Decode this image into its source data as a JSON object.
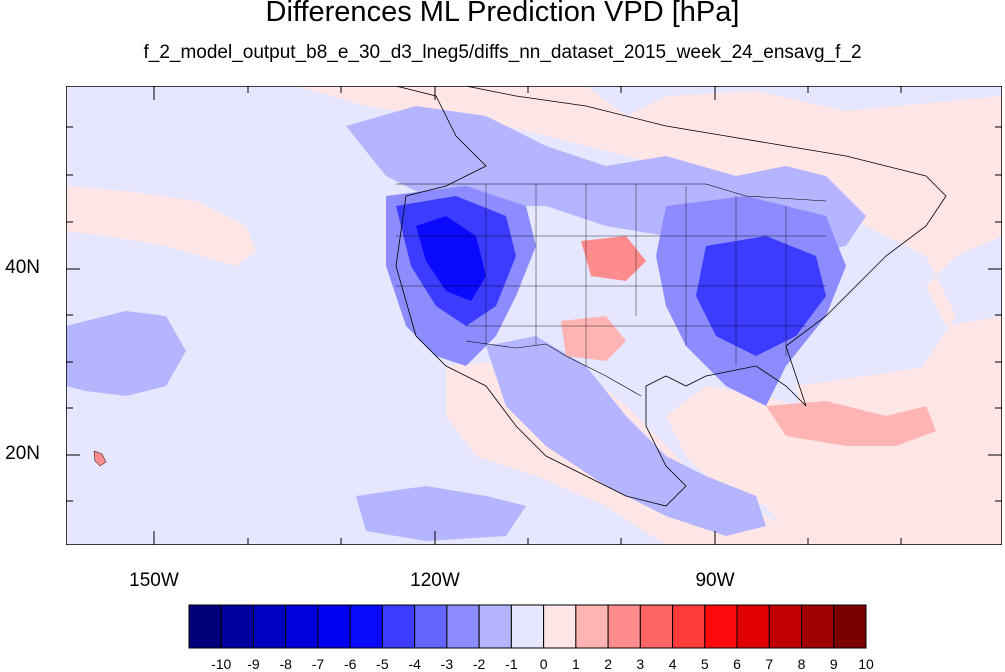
{
  "title": "Differences ML Prediction VPD [hPa]",
  "subtitle": "f_2_model_output_b8_e_30_d3_lneg5/diffs_nn_dataset_2015_week_24_ensavg_f_2",
  "axes": {
    "lat_labels": [
      "40N",
      "20N"
    ],
    "lon_labels": [
      "150W",
      "120W",
      "90W"
    ]
  },
  "colorbar": {
    "labels": [
      "-10",
      "-9",
      "-8",
      "-7",
      "-6",
      "-5",
      "-4",
      "-3",
      "-2",
      "-1",
      "0",
      "1",
      "2",
      "3",
      "4",
      "5",
      "6",
      "7",
      "8",
      "9",
      "10"
    ],
    "colors": [
      "#00007a",
      "#0000a0",
      "#0000c0",
      "#0000dc",
      "#0000f0",
      "#0a0aff",
      "#3c3cff",
      "#6464ff",
      "#8c8cff",
      "#b4b4ff",
      "#e6e6ff",
      "#ffe6e6",
      "#ffb4b4",
      "#ff8c8c",
      "#ff6464",
      "#ff3c3c",
      "#ff0a0a",
      "#e00000",
      "#c00000",
      "#a00000",
      "#7a0000"
    ]
  }
}
